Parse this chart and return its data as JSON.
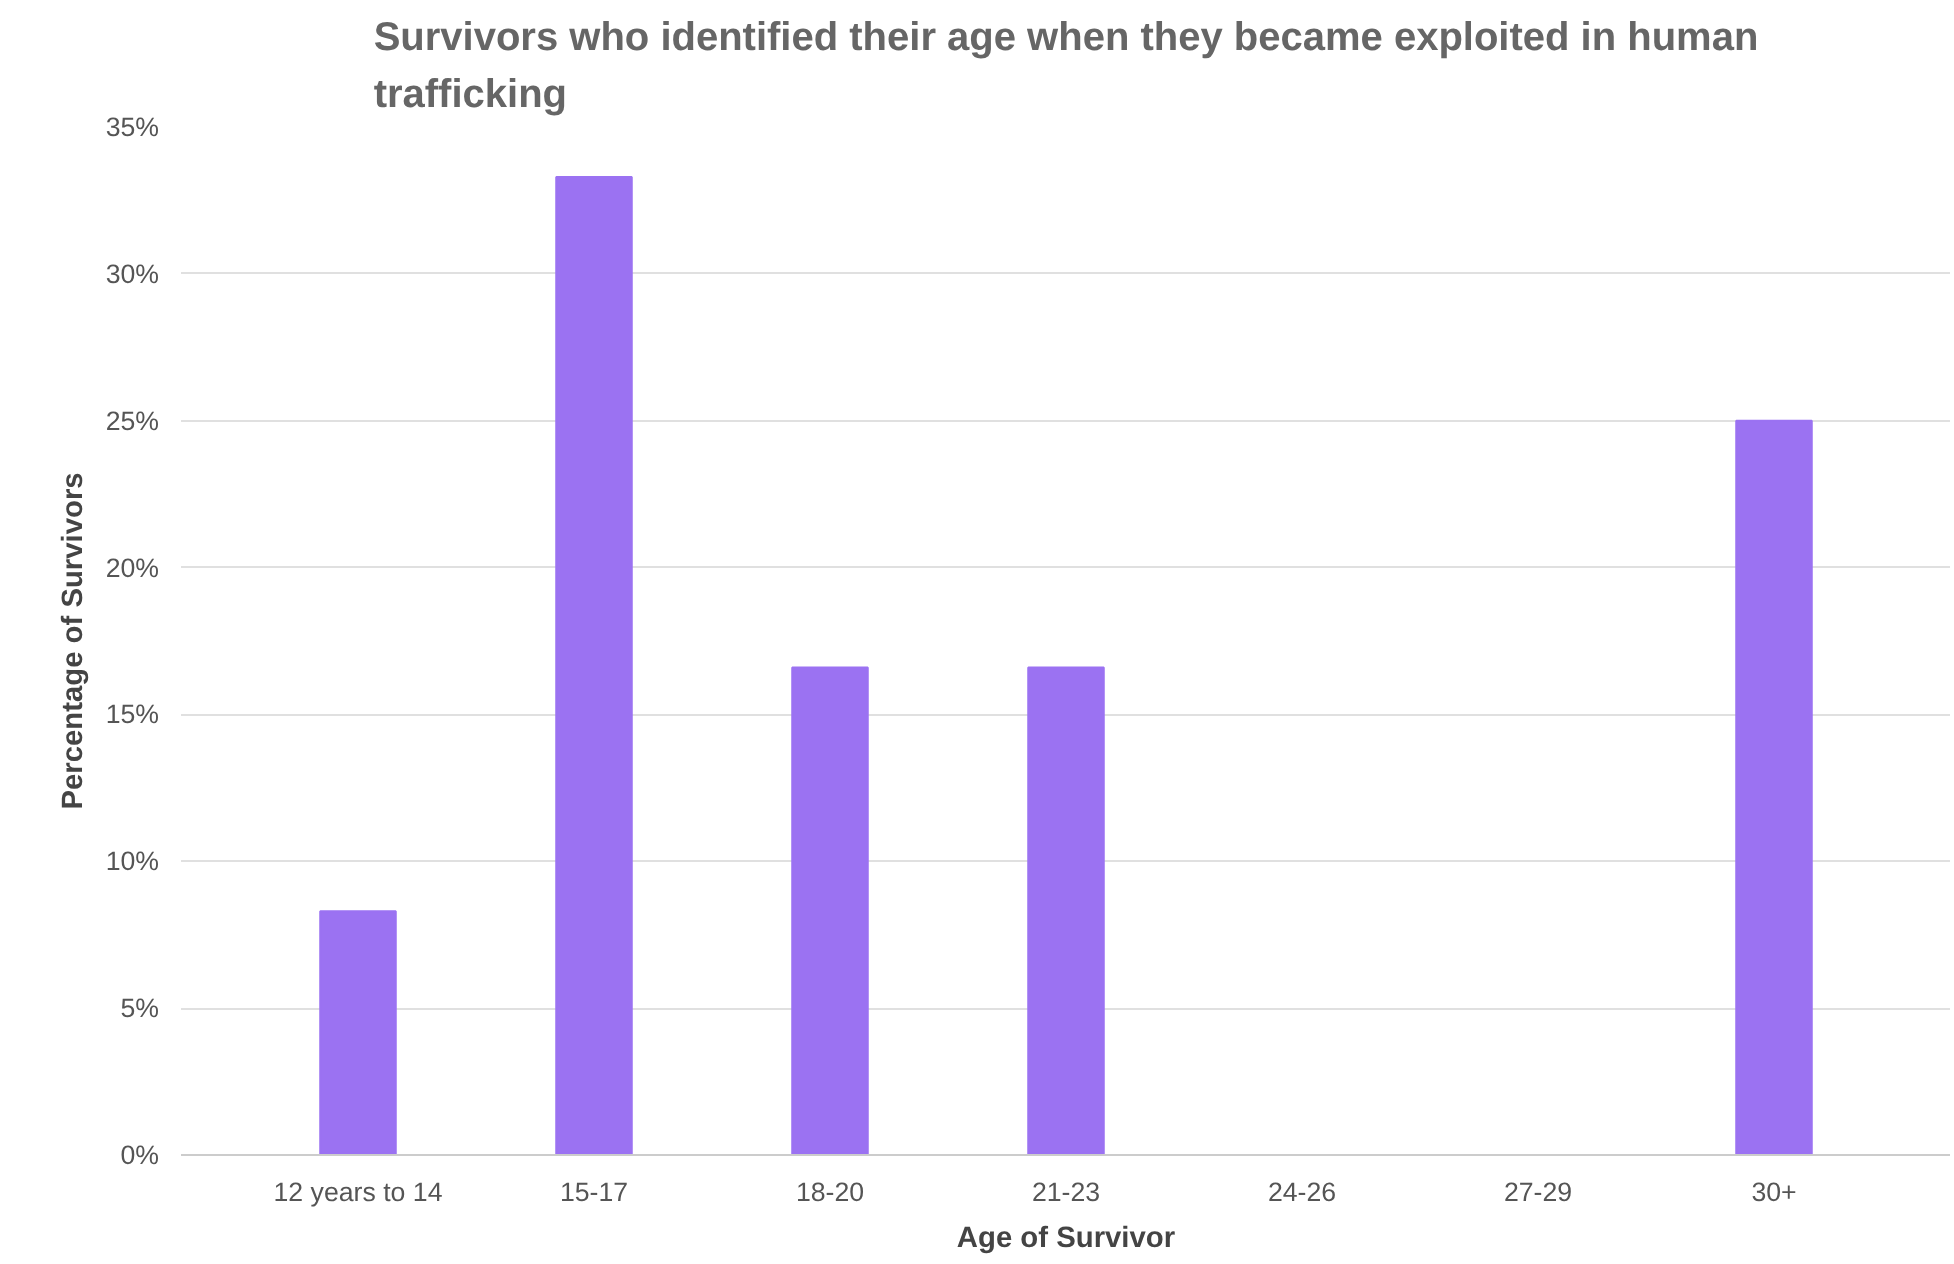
{
  "chart_data": {
    "type": "bar",
    "title": "Survivors who identified their age when they became exploited in human trafficking",
    "xlabel": "Age of Survivor",
    "ylabel": "Percentage of Survivors",
    "categories": [
      "12 years to 14",
      "15-17",
      "18-20",
      "21-23",
      "24-26",
      "27-29",
      "30+"
    ],
    "values": [
      8.3,
      33.3,
      16.6,
      16.6,
      0,
      0,
      25
    ],
    "color": "#9b72f2",
    "ylim": [
      0,
      35
    ],
    "yticks": [
      {
        "value": 0,
        "label": "0%"
      },
      {
        "value": 5,
        "label": "5%"
      },
      {
        "value": 10,
        "label": "10%"
      },
      {
        "value": 15,
        "label": "15%"
      },
      {
        "value": 20,
        "label": "20%"
      },
      {
        "value": 25,
        "label": "25%"
      },
      {
        "value": 30,
        "label": "30%"
      },
      {
        "value": 35,
        "label": "35%"
      }
    ],
    "grid": "y"
  }
}
